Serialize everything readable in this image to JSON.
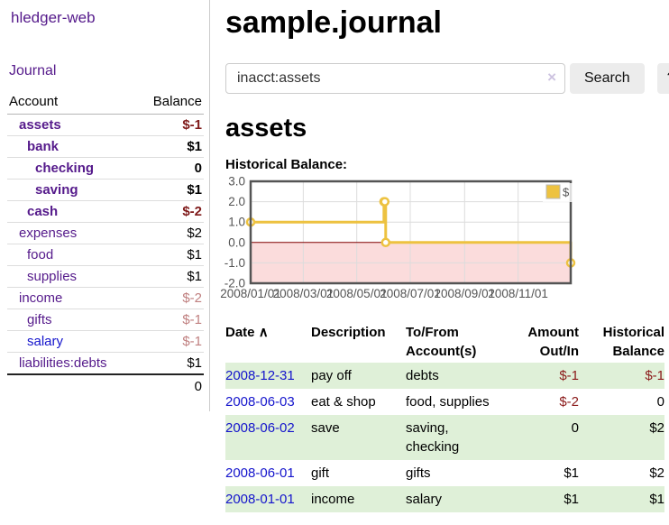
{
  "app": {
    "brand": "hledger-web"
  },
  "sidebar": {
    "nav_journal": "Journal",
    "accounts": {
      "col_account": "Account",
      "col_balance": "Balance",
      "rows": [
        {
          "account": "assets",
          "indent": 1,
          "bold": true,
          "balance": "$-1",
          "negative": true,
          "link_color": "purple"
        },
        {
          "account": "bank",
          "indent": 2,
          "bold": true,
          "balance": "$1",
          "negative": false,
          "link_color": "purple"
        },
        {
          "account": "checking",
          "indent": 3,
          "bold": true,
          "balance": "0",
          "negative": false,
          "link_color": "purple"
        },
        {
          "account": "saving",
          "indent": 3,
          "bold": true,
          "balance": "$1",
          "negative": false,
          "link_color": "purple"
        },
        {
          "account": "cash",
          "indent": 2,
          "bold": true,
          "balance": "$-2",
          "negative": true,
          "link_color": "purple"
        },
        {
          "account": "expenses",
          "indent": 1,
          "bold": false,
          "balance": "$2",
          "negative": false,
          "link_color": "purple"
        },
        {
          "account": "food",
          "indent": 2,
          "bold": false,
          "balance": "$1",
          "negative": false,
          "link_color": "purple"
        },
        {
          "account": "supplies",
          "indent": 2,
          "bold": false,
          "balance": "$1",
          "negative": false,
          "link_color": "purple"
        },
        {
          "account": "income",
          "indent": 1,
          "bold": false,
          "balance": "$-2",
          "negative": true,
          "link_color": "purple"
        },
        {
          "account": "gifts",
          "indent": 2,
          "bold": false,
          "balance": "$-1",
          "negative": true,
          "link_color": "purple"
        },
        {
          "account": "salary",
          "indent": 2,
          "bold": false,
          "balance": "$-1",
          "negative": true,
          "link_color": "blue"
        },
        {
          "account": "liabilities:debts",
          "indent": 1,
          "bold": false,
          "balance": "$1",
          "negative": false,
          "link_color": "purple"
        }
      ],
      "total": "0"
    }
  },
  "header": {
    "title": "sample.journal"
  },
  "search": {
    "value": "inacct:assets",
    "clear_icon": "×",
    "search_button": "Search",
    "help_button": "?"
  },
  "main": {
    "account_heading": "assets",
    "chart_label": "Historical Balance:"
  },
  "chart_data": {
    "type": "line",
    "step": true,
    "series": [
      {
        "name": "$",
        "color": "#edc240",
        "points": [
          {
            "date": "2008-01-01",
            "value": 1
          },
          {
            "date": "2008-06-01",
            "value": 2
          },
          {
            "date": "2008-06-02",
            "value": 2
          },
          {
            "date": "2008-06-03",
            "value": 0
          },
          {
            "date": "2008-12-31",
            "value": -1
          }
        ]
      }
    ],
    "xlim": [
      "2008-01-01",
      "2008-12-31"
    ],
    "ylim": [
      -2,
      3
    ],
    "x_ticks": [
      {
        "date": "2008-01-01",
        "label": "2008/01/01"
      },
      {
        "date": "2008-03-01",
        "label": "2008/03/01"
      },
      {
        "date": "2008-05-01",
        "label": "2008/05/01"
      },
      {
        "date": "2008-07-01",
        "label": "2008/07/01"
      },
      {
        "date": "2008-09-01",
        "label": "2008/09/01"
      },
      {
        "date": "2008-11-01",
        "label": "2008/11/01"
      }
    ],
    "y_ticks": [
      "3.0",
      "2.0",
      "1.0",
      "0.0",
      "-1.0",
      "-2.0"
    ],
    "grid": true,
    "legend_position": "top-right",
    "legend_label": "$",
    "colors": {
      "negative_region_fill": "#fbdcdc",
      "zero_line": "#800000",
      "grid_line": "#dcdcdc",
      "border": "#545454",
      "tick_text": "#545454"
    }
  },
  "register": {
    "columns": [
      {
        "line1": "Date",
        "sort": "∧",
        "align": "left"
      },
      {
        "line1": "Description",
        "align": "left"
      },
      {
        "line1": "To/From",
        "line2": "Account(s)",
        "align": "left"
      },
      {
        "line1": "Amount",
        "line2": "Out/In",
        "align": "right"
      },
      {
        "line1": "Historical",
        "line2": "Balance",
        "align": "right"
      }
    ],
    "rows": [
      {
        "date": "2008-12-31",
        "description": "pay off",
        "accounts": "debts",
        "amount": "$-1",
        "amount_negative": true,
        "balance": "$-1",
        "balance_negative": true,
        "shaded": true
      },
      {
        "date": "2008-06-03",
        "description": "eat & shop",
        "accounts": "food, supplies",
        "amount": "$-2",
        "amount_negative": true,
        "balance": "0",
        "balance_negative": false,
        "shaded": false
      },
      {
        "date": "2008-06-02",
        "description": "save",
        "accounts": "saving, checking",
        "amount": "0",
        "amount_negative": false,
        "balance": "$2",
        "balance_negative": false,
        "shaded": true
      },
      {
        "date": "2008-06-01",
        "description": "gift",
        "accounts": "gifts",
        "amount": "$1",
        "amount_negative": false,
        "balance": "$2",
        "balance_negative": false,
        "shaded": false
      },
      {
        "date": "2008-01-01",
        "description": "income",
        "accounts": "salary",
        "amount": "$1",
        "amount_negative": false,
        "balance": "$1",
        "balance_negative": false,
        "shaded": true
      }
    ]
  }
}
